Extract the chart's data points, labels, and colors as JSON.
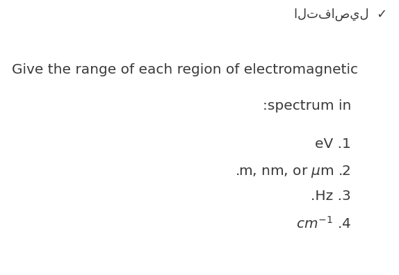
{
  "background_color": "#ffffff",
  "arabic_header": "التفاصيل ⢵",
  "line1": "Give the range of each region of electromagnetic",
  "line2": ":spectrum in",
  "item1": "eV .1",
  "item3": ".Hz .3",
  "item4_suffix": " .4",
  "text_color": "#3a3a3a",
  "font_size_arabic": 13,
  "font_size_header": 14.5,
  "font_size_items": 14.5,
  "fig_width": 5.74,
  "fig_height": 3.96,
  "dpi": 100
}
